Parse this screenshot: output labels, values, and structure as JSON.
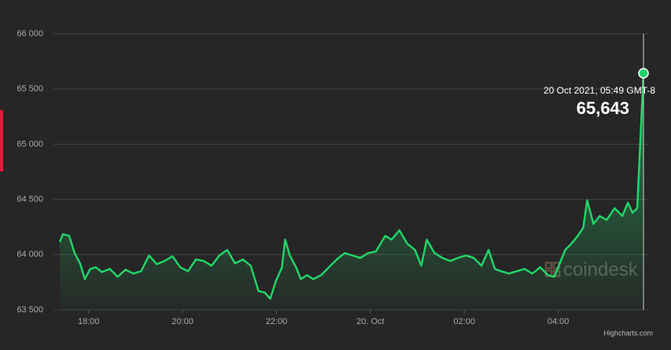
{
  "chart_data": {
    "type": "area",
    "color": "#22d36a",
    "grid": true,
    "x": [
      "2021-10-19T17:23",
      "2021-10-19T17:27",
      "2021-10-19T17:35",
      "2021-10-19T17:42",
      "2021-10-19T17:49",
      "2021-10-19T17:55",
      "2021-10-19T18:02",
      "2021-10-19T18:09",
      "2021-10-19T18:17",
      "2021-10-19T18:27",
      "2021-10-19T18:37",
      "2021-10-19T18:47",
      "2021-10-19T18:57",
      "2021-10-19T19:07",
      "2021-10-19T19:17",
      "2021-10-19T19:27",
      "2021-10-19T19:37",
      "2021-10-19T19:47",
      "2021-10-19T19:57",
      "2021-10-19T20:07",
      "2021-10-19T20:17",
      "2021-10-19T20:27",
      "2021-10-19T20:37",
      "2021-10-19T20:47",
      "2021-10-19T20:57",
      "2021-10-19T21:07",
      "2021-10-19T21:17",
      "2021-10-19T21:27",
      "2021-10-19T21:37",
      "2021-10-19T21:45",
      "2021-10-19T21:52",
      "2021-10-19T21:59",
      "2021-10-19T22:07",
      "2021-10-19T22:11",
      "2021-10-19T22:17",
      "2021-10-19T22:25",
      "2021-10-19T22:31",
      "2021-10-19T22:39",
      "2021-10-19T22:47",
      "2021-10-19T22:57",
      "2021-10-19T23:07",
      "2021-10-19T23:17",
      "2021-10-19T23:27",
      "2021-10-19T23:37",
      "2021-10-19T23:47",
      "2021-10-19T23:57",
      "2021-10-20T00:07",
      "2021-10-20T00:19",
      "2021-10-20T00:27",
      "2021-10-20T00:37",
      "2021-10-20T00:47",
      "2021-10-20T00:57",
      "2021-10-20T01:05",
      "2021-10-20T01:12",
      "2021-10-20T01:22",
      "2021-10-20T01:32",
      "2021-10-20T01:42",
      "2021-10-20T01:52",
      "2021-10-20T02:02",
      "2021-10-20T02:12",
      "2021-10-20T02:22",
      "2021-10-20T02:31",
      "2021-10-20T02:39",
      "2021-10-20T02:47",
      "2021-10-20T02:57",
      "2021-10-20T03:07",
      "2021-10-20T03:17",
      "2021-10-20T03:27",
      "2021-10-20T03:37",
      "2021-10-20T03:47",
      "2021-10-20T03:55",
      "2021-10-20T04:02",
      "2021-10-20T04:09",
      "2021-10-20T04:17",
      "2021-10-20T04:25",
      "2021-10-20T04:32",
      "2021-10-20T04:37",
      "2021-10-20T04:45",
      "2021-10-20T04:53",
      "2021-10-20T05:02",
      "2021-10-20T05:12",
      "2021-10-20T05:22",
      "2021-10-20T05:29",
      "2021-10-20T05:35",
      "2021-10-20T05:41",
      "2021-10-20T05:44",
      "2021-10-20T05:49"
    ],
    "values": [
      64114,
      64186,
      64171,
      64014,
      63921,
      63779,
      63871,
      63886,
      63843,
      63871,
      63800,
      63864,
      63829,
      63850,
      63993,
      63914,
      63943,
      63986,
      63886,
      63850,
      63957,
      63943,
      63900,
      63993,
      64043,
      63921,
      63957,
      63900,
      63671,
      63657,
      63600,
      63757,
      63886,
      64136,
      63993,
      63886,
      63779,
      63814,
      63779,
      63814,
      63886,
      63957,
      64014,
      63993,
      63971,
      64014,
      64029,
      64171,
      64136,
      64221,
      64100,
      64043,
      63900,
      64136,
      64014,
      63971,
      63943,
      63971,
      63993,
      63971,
      63900,
      64043,
      63871,
      63850,
      63829,
      63850,
      63871,
      63829,
      63886,
      63814,
      63800,
      63921,
      64043,
      64100,
      64171,
      64243,
      64493,
      64279,
      64350,
      64314,
      64421,
      64350,
      64471,
      64380,
      64421,
      64886,
      65643
    ],
    "xlim": [
      "2021-10-19T17:15",
      "2021-10-20T05:56"
    ],
    "xticks": [
      {
        "value": "2021-10-19T18:00",
        "label": "18:00"
      },
      {
        "value": "2021-10-19T20:00",
        "label": "20:00"
      },
      {
        "value": "2021-10-19T22:00",
        "label": "22:00"
      },
      {
        "value": "2021-10-20T00:00",
        "label": "20. Oct"
      },
      {
        "value": "2021-10-20T02:00",
        "label": "02:00"
      },
      {
        "value": "2021-10-20T04:00",
        "label": "04:00"
      }
    ],
    "ylim": [
      63500,
      66000
    ],
    "yticks": [
      {
        "value": 63500,
        "label": "63 500"
      },
      {
        "value": 64000,
        "label": "64 000"
      },
      {
        "value": 64500,
        "label": "64 500"
      },
      {
        "value": 65000,
        "label": "65 000"
      },
      {
        "value": 65500,
        "label": "65 500"
      },
      {
        "value": 66000,
        "label": "66 000"
      }
    ],
    "tooltip": {
      "label": "20 Oct 2021, 05:49 GMT-8",
      "value": "65,643"
    },
    "watermark": "coindesk",
    "credits": "Highcharts.com"
  }
}
